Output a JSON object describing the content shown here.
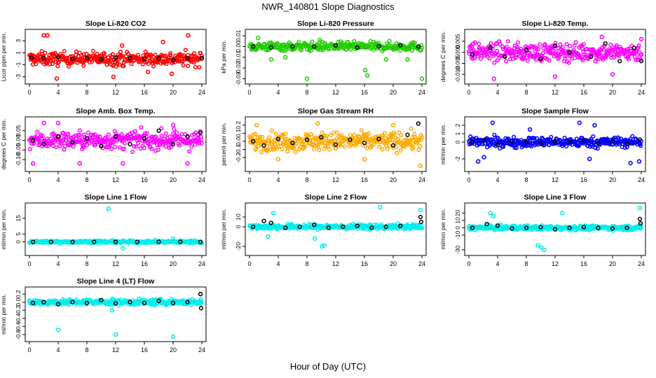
{
  "page": {
    "title": "NWR_140801  Slope Diagnostics",
    "xlabel": "Hour of Day (UTC)"
  },
  "colors": {
    "red": "#ff0000",
    "green": "#22cc00",
    "magenta": "#ff00ff",
    "orange": "#ffaa00",
    "blue": "#0000ff",
    "cyan": "#00eeee",
    "black": "#000000"
  },
  "chart_data": [
    {
      "type": "scatter",
      "title": "Slope Li-820 CO2",
      "ylabel": "Licor ppm per min.",
      "xlim": [
        0,
        24
      ],
      "xticks": [
        "0",
        "4",
        "8",
        "12",
        "16",
        "20",
        "24"
      ],
      "ylim": [
        -3.5,
        4.2
      ],
      "yticks": [
        "-3",
        "-1",
        "1",
        "3"
      ],
      "color": "red",
      "spread": 1.1,
      "outliers": [
        [
          2.0,
          3.9
        ],
        [
          2.5,
          3.9
        ],
        [
          3.8,
          -3.3
        ],
        [
          11.7,
          -3.0
        ],
        [
          12.9,
          2.2
        ],
        [
          18.6,
          2.8
        ],
        [
          22.1,
          3.9
        ],
        [
          19.8,
          -2.5
        ],
        [
          16.5,
          -2.2
        ]
      ],
      "black": [
        [
          0.3,
          0.2
        ],
        [
          2,
          0.1
        ],
        [
          4,
          0.3
        ],
        [
          6,
          0
        ],
        [
          8,
          0.1
        ],
        [
          10,
          -0.1
        ],
        [
          12,
          0.2
        ],
        [
          14,
          0.1
        ],
        [
          16,
          0
        ],
        [
          18,
          0.1
        ],
        [
          20,
          -0.2
        ],
        [
          22,
          0.1
        ],
        [
          24,
          0.1
        ]
      ]
    },
    {
      "type": "scatter",
      "title": "Slope Li-820 Pressure",
      "ylabel": "kPa per min.",
      "xlim": [
        0,
        24
      ],
      "xticks": [
        "0",
        "4",
        "8",
        "12",
        "16",
        "20",
        "24"
      ],
      "ylim": [
        -0.031,
        0.012
      ],
      "yticks": [
        "-0.03",
        "-0.02",
        "-0.01",
        "0.00",
        "0.01"
      ],
      "color": "green",
      "spread": 0.004,
      "outliers": [
        [
          1.2,
          0.008
        ],
        [
          5,
          -0.01
        ],
        [
          8,
          -0.03
        ],
        [
          9.8,
          0.006
        ],
        [
          16.1,
          -0.022
        ],
        [
          16.4,
          -0.027
        ],
        [
          24,
          -0.03
        ],
        [
          3,
          -0.012
        ],
        [
          19,
          -0.012
        ],
        [
          22,
          -0.012
        ]
      ],
      "black": [
        [
          0.5,
          0.0
        ],
        [
          3,
          -0.001
        ],
        [
          6,
          0.0
        ],
        [
          9,
          0.0
        ],
        [
          12,
          0.001
        ],
        [
          15,
          -0.001
        ],
        [
          18,
          0.0
        ],
        [
          21,
          0.001
        ],
        [
          23.5,
          0.0
        ]
      ]
    },
    {
      "type": "scatter",
      "title": "Slope Li-820 Temp.",
      "ylabel": "degrees C per min.",
      "xlim": [
        0,
        24
      ],
      "xticks": [
        "0",
        "4",
        "8",
        "12",
        "16",
        "20",
        "24"
      ],
      "ylim": [
        -0.0125,
        0.0085
      ],
      "yticks": [
        "-0.010",
        "-0.005",
        "0.000",
        "0.005"
      ],
      "color": "magenta",
      "spread": 0.004,
      "outliers": [
        [
          3.5,
          -0.012
        ],
        [
          12,
          -0.011
        ],
        [
          18.5,
          0.007
        ],
        [
          20,
          -0.01
        ],
        [
          24,
          0.006
        ],
        [
          0.6,
          0.004
        ]
      ],
      "black": [
        [
          0.5,
          -0.001
        ],
        [
          3,
          0.002
        ],
        [
          5,
          -0.002
        ],
        [
          8,
          0.001
        ],
        [
          10,
          -0.003
        ],
        [
          12,
          0.003
        ],
        [
          14,
          0
        ],
        [
          17,
          -0.002
        ],
        [
          19,
          0.004
        ],
        [
          21,
          -0.004
        ],
        [
          23,
          0.002
        ],
        [
          24,
          -0.004
        ]
      ]
    },
    {
      "type": "scatter",
      "title": "Slope Amb. Box Temp.",
      "ylabel": "degrees C per min.",
      "xlim": [
        0,
        24
      ],
      "xticks": [
        "0",
        "4",
        "8",
        "12",
        "16",
        "20",
        "24"
      ],
      "ylim": [
        -0.14,
        0.1
      ],
      "yticks": [
        "-0.10",
        "-0.05",
        "0.00",
        "0.05"
      ],
      "color": "magenta",
      "spread": 0.045,
      "outliers": [
        [
          0.5,
          -0.12
        ],
        [
          2,
          0.09
        ],
        [
          4,
          0.09
        ],
        [
          7,
          -0.12
        ],
        [
          13,
          -0.12
        ],
        [
          20,
          0.08
        ],
        [
          22,
          -0.12
        ]
      ],
      "black": [
        [
          0.5,
          0
        ],
        [
          2,
          -0.02
        ],
        [
          4,
          0.02
        ],
        [
          6,
          -0.01
        ],
        [
          8,
          0.01
        ],
        [
          10,
          -0.03
        ],
        [
          12,
          0.02
        ],
        [
          14,
          -0.02
        ],
        [
          16,
          0.01
        ],
        [
          18,
          0.05
        ],
        [
          20,
          -0.02
        ],
        [
          22,
          0.02
        ],
        [
          23.8,
          0.04
        ]
      ]
    },
    {
      "type": "scatter",
      "title": "Slope Gas Stream RH",
      "ylabel": "percent per min.",
      "xlim": [
        0,
        24
      ],
      "xticks": [
        "0",
        "4",
        "8",
        "12",
        "16",
        "20",
        "24"
      ],
      "ylim": [
        -0.32,
        0.25
      ],
      "yticks": [
        "-0.2",
        "-0.1",
        "0.0",
        "0.1",
        "0.2"
      ],
      "color": "orange",
      "spread": 0.11,
      "outliers": [
        [
          1,
          0.2
        ],
        [
          4,
          -0.22
        ],
        [
          9.5,
          0.22
        ],
        [
          16,
          -0.22
        ],
        [
          23.8,
          -0.3
        ],
        [
          20,
          0.2
        ]
      ],
      "black": [
        [
          0.5,
          0
        ],
        [
          2,
          -0.05
        ],
        [
          4,
          0.03
        ],
        [
          6,
          -0.02
        ],
        [
          8,
          0.02
        ],
        [
          10,
          0.05
        ],
        [
          12,
          -0.04
        ],
        [
          14,
          0.02
        ],
        [
          16,
          -0.02
        ],
        [
          18,
          0.03
        ],
        [
          20,
          -0.05
        ],
        [
          22,
          0.08
        ],
        [
          23.5,
          0.22
        ]
      ]
    },
    {
      "type": "scatter",
      "title": "Slope Sample Flow",
      "ylabel": "ml/min per min.",
      "xlim": [
        0,
        24
      ],
      "xticks": [
        "0",
        "4",
        "8",
        "12",
        "16",
        "20",
        "24"
      ],
      "ylim": [
        -3,
        2.5
      ],
      "yticks": [
        "-2",
        "0",
        "1",
        "2"
      ],
      "color": "blue",
      "spread": 0.6,
      "outliers": [
        [
          1.3,
          -2.3
        ],
        [
          3.3,
          2.3
        ],
        [
          2.1,
          -1.8
        ],
        [
          15.4,
          2.3
        ],
        [
          16.8,
          -2.0
        ],
        [
          17.5,
          2.0
        ],
        [
          22.5,
          -2.5
        ],
        [
          23.7,
          -2.3
        ],
        [
          8.5,
          1.5
        ]
      ],
      "black": [
        [
          0.5,
          0
        ],
        [
          2,
          0.2
        ],
        [
          4,
          -0.3
        ],
        [
          6,
          0.1
        ],
        [
          8,
          0
        ],
        [
          10,
          -0.2
        ],
        [
          12,
          0.1
        ],
        [
          14,
          0
        ],
        [
          16,
          0.2
        ],
        [
          18,
          -0.1
        ],
        [
          20,
          0.1
        ],
        [
          22,
          -0.2
        ],
        [
          23.8,
          0.3
        ]
      ]
    },
    {
      "type": "scatter",
      "title": "Slope Line 1 Flow",
      "ylabel": "ml/min per min.",
      "xlim": [
        0,
        24
      ],
      "xticks": [
        "0",
        "4",
        "8",
        "12",
        "16",
        "20",
        "24"
      ],
      "ylim": [
        -6,
        22
      ],
      "yticks": [
        "0",
        "5",
        "15"
      ],
      "color": "cyan",
      "spread": 0.8,
      "outliers": [
        [
          11,
          21
        ],
        [
          13,
          -4
        ],
        [
          15,
          -1
        ],
        [
          20,
          2
        ]
      ],
      "black": [
        [
          0.5,
          0
        ],
        [
          3,
          0
        ],
        [
          6,
          0
        ],
        [
          9,
          0
        ],
        [
          12,
          0
        ],
        [
          15,
          0
        ],
        [
          18,
          0
        ],
        [
          21,
          0
        ],
        [
          23.8,
          0
        ]
      ]
    },
    {
      "type": "scatter",
      "title": "Slope Line 2 Flow",
      "ylabel": "ml/min per min.",
      "xlim": [
        0,
        24
      ],
      "xticks": [
        "0",
        "4",
        "8",
        "12",
        "16",
        "20",
        "24"
      ],
      "ylim": [
        -25,
        20
      ],
      "yticks": [
        "-20",
        "0",
        "10"
      ],
      "color": "cyan",
      "spread": 2.5,
      "outliers": [
        [
          3.3,
          14
        ],
        [
          2.6,
          -10
        ],
        [
          10.1,
          -20
        ],
        [
          10.4,
          -19
        ],
        [
          9.1,
          -12
        ],
        [
          18.2,
          20
        ],
        [
          23.8,
          17
        ]
      ],
      "black": [
        [
          0.5,
          0
        ],
        [
          2,
          6
        ],
        [
          3,
          4
        ],
        [
          5,
          -1
        ],
        [
          7,
          0
        ],
        [
          9,
          2
        ],
        [
          11,
          -1
        ],
        [
          13,
          0
        ],
        [
          15,
          1
        ],
        [
          17,
          -1
        ],
        [
          19,
          0
        ],
        [
          21,
          1
        ],
        [
          23.8,
          10
        ],
        [
          23.9,
          5
        ]
      ]
    },
    {
      "type": "scatter",
      "title": "Slope Line 3 Flow",
      "ylabel": "ml/min per min.",
      "xlim": [
        0,
        24
      ],
      "xticks": [
        "0",
        "4",
        "8",
        "12",
        "16",
        "20",
        "24"
      ],
      "ylim": [
        -32,
        28
      ],
      "yticks": [
        "-30",
        "-10",
        "0",
        "10",
        "20"
      ],
      "color": "cyan",
      "spread": 3,
      "outliers": [
        [
          3.0,
          20
        ],
        [
          3.4,
          16
        ],
        [
          10.1,
          -27
        ],
        [
          10.5,
          -30
        ],
        [
          9.6,
          -24
        ],
        [
          13,
          20
        ],
        [
          23.8,
          27
        ]
      ],
      "black": [
        [
          0.5,
          0
        ],
        [
          2.5,
          5
        ],
        [
          4,
          3
        ],
        [
          6,
          -1
        ],
        [
          8,
          0
        ],
        [
          10,
          1
        ],
        [
          12,
          -2
        ],
        [
          14,
          0
        ],
        [
          16,
          1
        ],
        [
          18,
          0
        ],
        [
          20,
          -1
        ],
        [
          22,
          0
        ],
        [
          23.8,
          12
        ],
        [
          23.9,
          6
        ]
      ]
    },
    {
      "type": "scatter",
      "title": "Slope Line 4 (LT) Flow",
      "ylabel": "ml/min per min.",
      "xlim": [
        0,
        24
      ],
      "xticks": [
        "0",
        "4",
        "8",
        "12",
        "16",
        "20",
        "24"
      ],
      "ylim": [
        -0.87,
        0.27
      ],
      "yticks": [
        "-0.8",
        "-0.6",
        "-0.4",
        "-0.2",
        "0.0",
        "0.2"
      ],
      "color": "cyan",
      "spread": 0.07,
      "outliers": [
        [
          4,
          -0.68
        ],
        [
          11.5,
          -0.2
        ],
        [
          12,
          -0.8
        ],
        [
          20,
          -0.85
        ],
        [
          23.8,
          0.2
        ]
      ],
      "black": [
        [
          0.5,
          -0.02
        ],
        [
          2,
          0.0
        ],
        [
          4,
          -0.05
        ],
        [
          6,
          0.0
        ],
        [
          8,
          -0.02
        ],
        [
          10,
          0.05
        ],
        [
          12,
          -0.03
        ],
        [
          14,
          0.0
        ],
        [
          16,
          -0.02
        ],
        [
          18,
          0.03
        ],
        [
          20,
          -0.02
        ],
        [
          22,
          0.0
        ],
        [
          23.8,
          0.2
        ],
        [
          23.9,
          -0.15
        ]
      ]
    }
  ]
}
